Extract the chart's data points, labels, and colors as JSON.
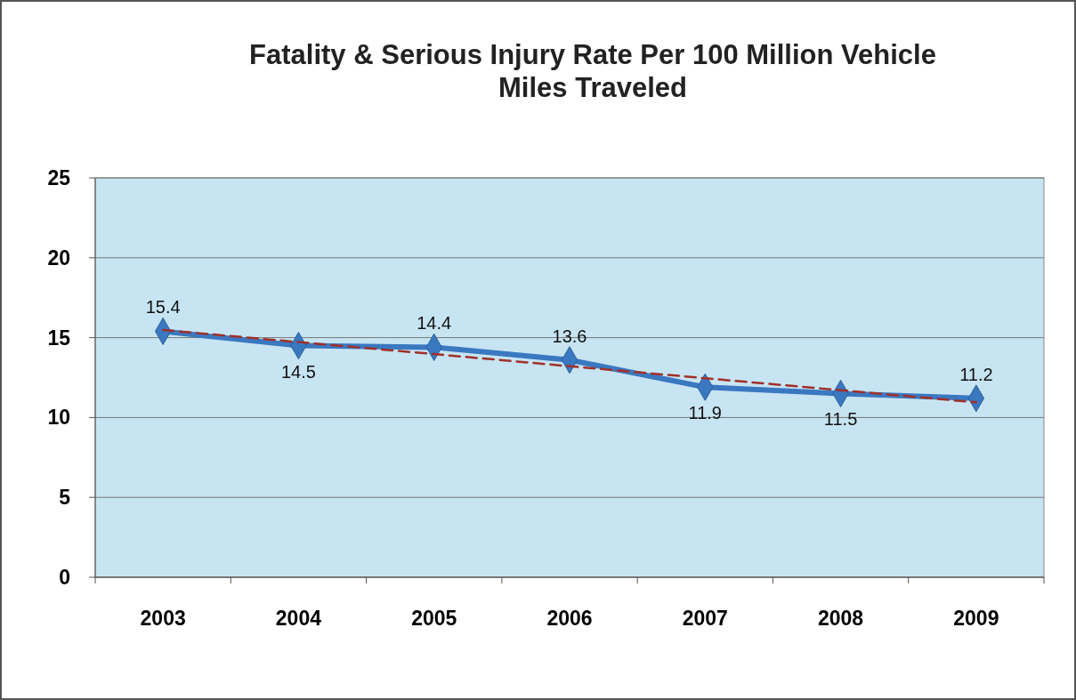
{
  "chart_data": {
    "type": "line",
    "title": "Fatality & Serious Injury Rate Per 100 Million Vehicle Miles Traveled",
    "categories": [
      "2003",
      "2004",
      "2005",
      "2006",
      "2007",
      "2008",
      "2009"
    ],
    "series": [
      {
        "color": "#3a78c0",
        "values": [
          15.4,
          14.5,
          14.4,
          13.6,
          11.9,
          11.5,
          11.2
        ],
        "marker": "diamond",
        "data_labels": true
      },
      {
        "type": "line",
        "values": [
          15.48,
          14.72,
          13.97,
          13.21,
          12.46,
          11.71,
          10.95
        ],
        "color": "#a0302a",
        "line_style": "dashed",
        "marker": "none"
      }
    ],
    "ylim": [
      0,
      25
    ],
    "yticks": [
      0,
      5,
      10,
      15,
      20,
      25
    ],
    "grid": "y"
  }
}
